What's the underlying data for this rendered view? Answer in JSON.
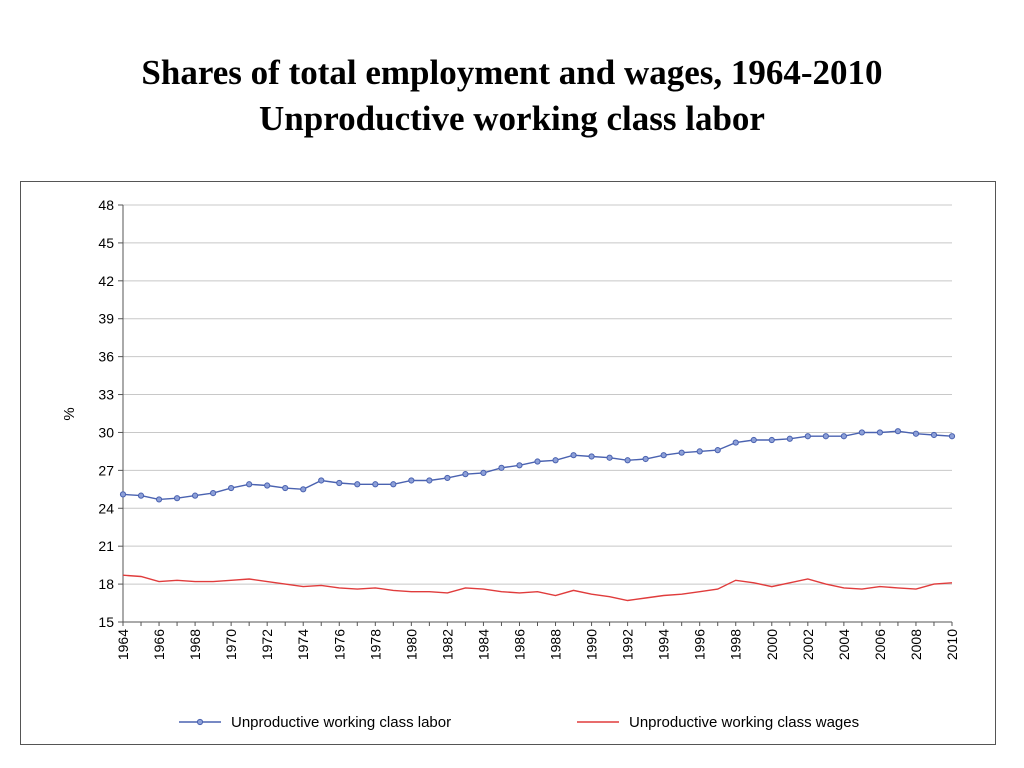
{
  "title": {
    "line1": "Shares of total employment and wages, 1964-2010",
    "line2": "Unproductive working class labor"
  },
  "chart_data": {
    "type": "line",
    "ylabel": "%",
    "xlabel": "",
    "ylim": [
      15,
      48
    ],
    "yticks": [
      15,
      18,
      21,
      24,
      27,
      30,
      33,
      36,
      39,
      42,
      45,
      48
    ],
    "xlim": [
      1964,
      2010
    ],
    "xticks": [
      1964,
      1966,
      1968,
      1970,
      1972,
      1974,
      1976,
      1978,
      1980,
      1982,
      1984,
      1986,
      1988,
      1990,
      1992,
      1994,
      1996,
      1998,
      2000,
      2002,
      2004,
      2006,
      2008,
      2010
    ],
    "grid": "horizontal",
    "legend_position": "bottom",
    "x": [
      1964,
      1965,
      1966,
      1967,
      1968,
      1969,
      1970,
      1971,
      1972,
      1973,
      1974,
      1975,
      1976,
      1977,
      1978,
      1979,
      1980,
      1981,
      1982,
      1983,
      1984,
      1985,
      1986,
      1987,
      1988,
      1989,
      1990,
      1991,
      1992,
      1993,
      1994,
      1995,
      1996,
      1997,
      1998,
      1999,
      2000,
      2001,
      2002,
      2003,
      2004,
      2005,
      2006,
      2007,
      2008,
      2009,
      2010
    ],
    "series": [
      {
        "name": "Unproductive working class labor",
        "color": "#4a62b0",
        "marker": "circle",
        "values": [
          25.1,
          25.0,
          24.7,
          24.8,
          25.0,
          25.2,
          25.6,
          25.9,
          25.8,
          25.6,
          25.5,
          26.2,
          26.0,
          25.9,
          25.9,
          25.9,
          26.2,
          26.2,
          26.4,
          26.7,
          26.8,
          27.2,
          27.4,
          27.7,
          27.8,
          28.2,
          28.1,
          28.0,
          27.8,
          27.9,
          28.2,
          28.4,
          28.5,
          28.6,
          29.2,
          29.4,
          29.4,
          29.5,
          29.7,
          29.7,
          29.7,
          30.0,
          30.0,
          30.1,
          29.9,
          29.8,
          29.7
        ]
      },
      {
        "name": "Unproductive working class wages",
        "color": "#e03c3c",
        "marker": "none",
        "values": [
          18.7,
          18.6,
          18.2,
          18.3,
          18.2,
          18.2,
          18.3,
          18.4,
          18.2,
          18.0,
          17.8,
          17.9,
          17.7,
          17.6,
          17.7,
          17.5,
          17.4,
          17.4,
          17.3,
          17.7,
          17.6,
          17.4,
          17.3,
          17.4,
          17.1,
          17.5,
          17.2,
          17.0,
          16.7,
          16.9,
          17.1,
          17.2,
          17.4,
          17.6,
          18.3,
          18.1,
          17.8,
          18.1,
          18.4,
          18.0,
          17.7,
          17.6,
          17.8,
          17.7,
          17.6,
          18.0,
          18.1
        ]
      }
    ]
  }
}
